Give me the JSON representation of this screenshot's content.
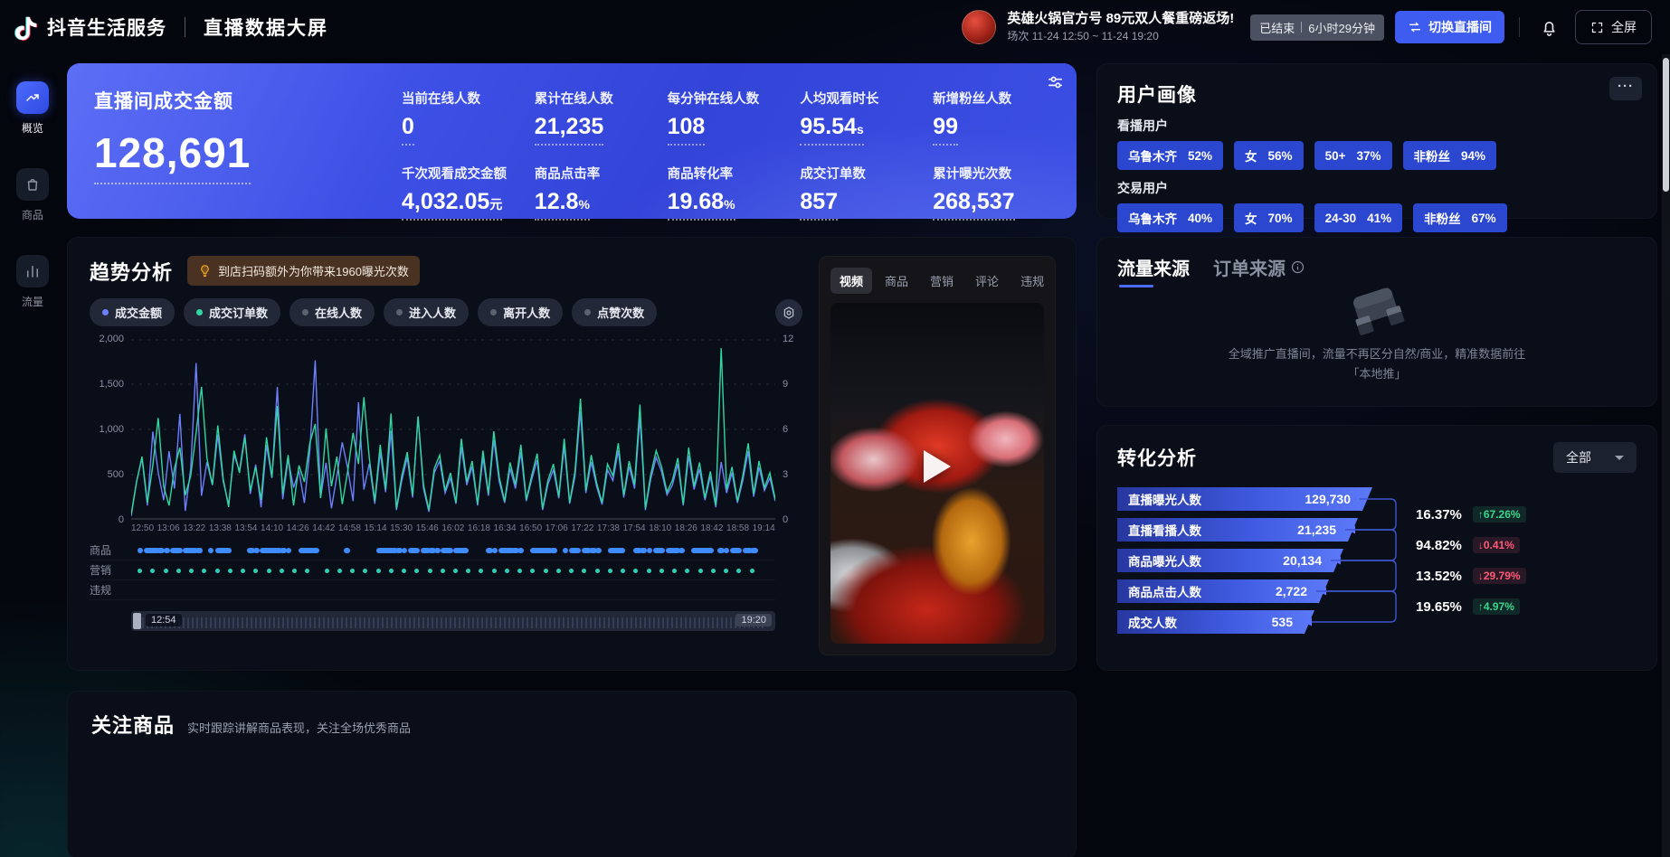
{
  "topbar": {
    "brand": "抖音生活服务",
    "page_title": "直播数据大屏",
    "live_title": "英雄火锅官方号 89元双人餐重磅返场!",
    "session": "场次 11-24 12:50 ~ 11-24 19:20",
    "status_badge": {
      "status": "已结束",
      "duration": "6小时29分钟"
    },
    "switch_button": "切换直播间",
    "fullscreen_button": "全屏"
  },
  "sidebar": {
    "items": [
      {
        "label": "概览",
        "active": true
      },
      {
        "label": "商品",
        "active": false
      },
      {
        "label": "流量",
        "active": false
      }
    ]
  },
  "hero": {
    "main_label": "直播间成交金额",
    "main_value": "128,691",
    "metrics": [
      {
        "label": "当前在线人数",
        "value": "0",
        "unit": ""
      },
      {
        "label": "累计在线人数",
        "value": "21,235",
        "unit": ""
      },
      {
        "label": "每分钟在线人数",
        "value": "108",
        "unit": ""
      },
      {
        "label": "人均观看时长",
        "value": "95.54",
        "unit": "s"
      },
      {
        "label": "新增粉丝人数",
        "value": "99",
        "unit": ""
      },
      {
        "label": "千次观看成交金额",
        "value": "4,032.05",
        "unit": "元"
      },
      {
        "label": "商品点击率",
        "value": "12.8",
        "unit": "%"
      },
      {
        "label": "商品转化率",
        "value": "19.68",
        "unit": "%"
      },
      {
        "label": "成交订单数",
        "value": "857",
        "unit": ""
      },
      {
        "label": "累计曝光次数",
        "value": "268,537",
        "unit": ""
      }
    ]
  },
  "trend": {
    "title": "趋势分析",
    "banner": "到店扫码额外为你带来1960曝光次数",
    "legend": [
      {
        "label": "成交金额",
        "color": "#6d7ffb",
        "active": true
      },
      {
        "label": "成交订单数",
        "color": "#31d7a0",
        "active": true
      },
      {
        "label": "在线人数",
        "color": "#5b616f",
        "active": false
      },
      {
        "label": "进入人数",
        "color": "#5b616f",
        "active": false
      },
      {
        "label": "离开人数",
        "color": "#5b616f",
        "active": false
      },
      {
        "label": "点赞次数",
        "color": "#5b616f",
        "active": false
      }
    ],
    "scrubber": {
      "start": "12:54",
      "end": "19:20"
    }
  },
  "chart_data": {
    "type": "line",
    "title": "趋势分析",
    "x_labels": [
      "12:50",
      "13:06",
      "13:22",
      "13:38",
      "13:54",
      "14:10",
      "14:26",
      "14:42",
      "14:58",
      "15:14",
      "15:30",
      "15:46",
      "16:02",
      "16:18",
      "16:34",
      "16:50",
      "17:06",
      "17:22",
      "17:38",
      "17:54",
      "18:10",
      "18:26",
      "18:42",
      "18:58",
      "19:14"
    ],
    "y_left": {
      "min": 0,
      "max": 2000,
      "ticks": [
        "2,000",
        "1,500",
        "1,000",
        "500",
        "0"
      ]
    },
    "y_right": {
      "min": 0,
      "max": 12,
      "ticks": [
        "12",
        "9",
        "6",
        "3",
        "0"
      ]
    },
    "grid": true,
    "legend_position": "top",
    "series": [
      {
        "name": "成交金额",
        "axis": "left",
        "color": "#6d7ffb",
        "values": [
          30,
          420,
          680,
          150,
          980,
          520,
          210,
          760,
          340,
          1180,
          90,
          560,
          1750,
          260,
          640,
          380,
          950,
          420,
          160,
          720,
          540,
          950,
          280,
          610,
          130,
          830,
          460,
          1480,
          220,
          670,
          350,
          540,
          180,
          760,
          1780,
          240,
          630,
          120,
          480,
          860,
          570,
          200,
          1310,
          330,
          620,
          170,
          750,
          300,
          990,
          100,
          430,
          690,
          240,
          1150,
          340,
          80,
          520,
          650,
          290,
          460,
          170,
          810,
          380,
          590,
          150,
          690,
          260,
          890,
          420,
          180,
          570,
          340,
          750,
          200,
          440,
          660,
          100,
          390,
          550,
          230,
          820,
          170,
          480,
          1210,
          290,
          640,
          360,
          160,
          550,
          430,
          770,
          240,
          590,
          340,
          1140,
          100,
          450,
          690,
          530,
          270,
          380,
          620,
          150,
          710,
          330,
          560,
          210,
          480,
          130,
          640,
          290,
          520,
          180,
          430,
          760,
          250,
          580,
          320,
          460,
          200
        ]
      },
      {
        "name": "成交订单数",
        "axis": "right",
        "color": "#31d7a0",
        "values": [
          0.3,
          2.5,
          4.2,
          1.1,
          3.6,
          6.8,
          2.2,
          0.9,
          3.4,
          4.8,
          1.6,
          2.9,
          5.8,
          8.9,
          4.1,
          2.3,
          6.3,
          2.7,
          0.8,
          4.6,
          3.1,
          5.5,
          1.9,
          3.5,
          1.3,
          5.5,
          2.8,
          7.6,
          1.7,
          4.3,
          0.9,
          3.6,
          2.5,
          5.1,
          6.4,
          1.4,
          6.1,
          2.2,
          4.2,
          1.0,
          3.2,
          5.8,
          3.7,
          8.2,
          4.1,
          1.2,
          5.0,
          2.0,
          7.1,
          0.7,
          2.9,
          4.5,
          1.6,
          6.9,
          2.3,
          0.6,
          3.4,
          4.3,
          1.9,
          3.1,
          1.1,
          5.4,
          2.5,
          3.9,
          1.0,
          4.6,
          1.7,
          5.9,
          2.8,
          1.2,
          3.8,
          2.3,
          5.0,
          1.3,
          2.9,
          4.4,
          0.7,
          2.6,
          3.7,
          1.5,
          5.4,
          1.1,
          3.2,
          8.1,
          1.9,
          4.3,
          2.4,
          1.1,
          3.7,
          2.9,
          5.1,
          1.6,
          3.9,
          2.3,
          7.7,
          0.7,
          3.0,
          4.6,
          3.5,
          1.8,
          2.6,
          4.1,
          1.0,
          4.8,
          2.2,
          3.8,
          1.4,
          3.2,
          0.9,
          11.5,
          2.0,
          3.5,
          1.2,
          2.9,
          5.1,
          1.7,
          3.9,
          2.1,
          3.1,
          1.3
        ]
      }
    ],
    "event_rows": [
      {
        "label": "商品",
        "marks": [
          1,
          2,
          3,
          4,
          5,
          6,
          8,
          9,
          10,
          12,
          13,
          14,
          18,
          19,
          20,
          21,
          22,
          23,
          24,
          26,
          27,
          28,
          33,
          38,
          39,
          40,
          41,
          42,
          43,
          45,
          46,
          47,
          48,
          50,
          51,
          55,
          56,
          57,
          58,
          59,
          60,
          62,
          63,
          64,
          65,
          67,
          68,
          70,
          71,
          72,
          74,
          75,
          78,
          79,
          80,
          81,
          83,
          84,
          85,
          87,
          88,
          89,
          91,
          92,
          93,
          95,
          96
        ]
      },
      {
        "label": "营销",
        "marks": [
          1,
          3,
          5,
          7,
          9,
          11,
          13,
          15,
          17,
          19,
          21,
          23,
          25,
          27,
          30,
          32,
          34,
          36,
          38,
          40,
          42,
          44,
          46,
          48,
          50,
          52,
          54,
          56,
          58,
          60,
          62,
          64,
          66,
          68,
          70,
          72,
          74,
          76,
          78,
          80,
          82,
          84,
          86,
          88,
          90,
          92,
          94,
          96
        ]
      },
      {
        "label": "违规",
        "marks": []
      }
    ]
  },
  "video_panel": {
    "tabs": [
      "视频",
      "商品",
      "营销",
      "评论",
      "违规"
    ],
    "active_tab": "视频"
  },
  "user_profile": {
    "title": "用户画像",
    "groups": [
      {
        "label": "看播用户",
        "chips": [
          {
            "name": "乌鲁木齐",
            "value": "52%"
          },
          {
            "name": "女",
            "value": "56%"
          },
          {
            "name": "50+",
            "value": "37%"
          },
          {
            "name": "非粉丝",
            "value": "94%"
          }
        ]
      },
      {
        "label": "交易用户",
        "chips": [
          {
            "name": "乌鲁木齐",
            "value": "40%"
          },
          {
            "name": "女",
            "value": "70%"
          },
          {
            "name": "24-30",
            "value": "41%"
          },
          {
            "name": "非粉丝",
            "value": "67%"
          }
        ]
      }
    ]
  },
  "sources": {
    "tabs": [
      "流量来源",
      "订单来源"
    ],
    "empty_text_line1": "全域推广直播间，流量不再区分自然/商业，精准数据前往",
    "empty_text_line2": "「本地推」"
  },
  "conversion": {
    "title": "转化分析",
    "filter_value": "全部",
    "funnel": [
      {
        "label": "直播曝光人数",
        "value": "129,730"
      },
      {
        "label": "直播看播人数",
        "value": "21,235"
      },
      {
        "label": "商品曝光人数",
        "value": "20,134"
      },
      {
        "label": "商品点击人数",
        "value": "2,722"
      },
      {
        "label": "成交人数",
        "value": "535"
      }
    ],
    "rates": [
      {
        "rate": "16.37%",
        "change": "↑67.26%",
        "trend": "up"
      },
      {
        "rate": "94.82%",
        "change": "↓0.41%",
        "trend": "down"
      },
      {
        "rate": "13.52%",
        "change": "↓29.79%",
        "trend": "down"
      },
      {
        "rate": "19.65%",
        "change": "↑4.97%",
        "trend": "up"
      }
    ],
    "accent_color": "#3f5ae0",
    "up_color": "#3bd68c",
    "down_color": "#ff5a78"
  },
  "bottom_panel": {
    "title": "关注商品",
    "subtitle": "实时跟踪讲解商品表现，关注全场优秀商品"
  }
}
